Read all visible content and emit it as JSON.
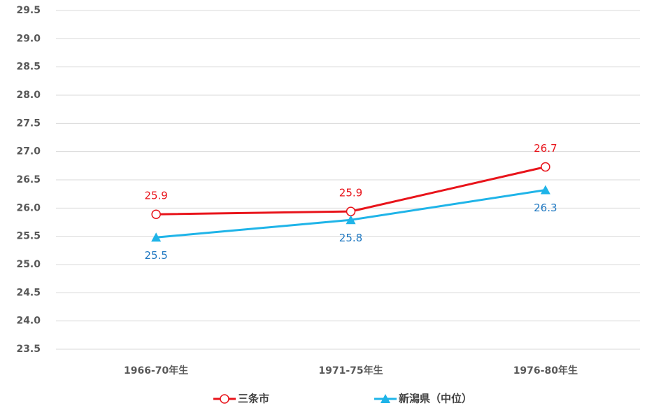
{
  "chart_data": {
    "type": "line",
    "categories": [
      "1966-70年生",
      "1971-75年生",
      "1976-80年生"
    ],
    "series": [
      {
        "name": "三条市",
        "color": "#e8141b",
        "label_color": "#e8141b",
        "marker": "circle",
        "values": [
          25.89,
          25.94,
          26.73
        ],
        "value_labels": [
          "25.9",
          "25.9",
          "26.7"
        ]
      },
      {
        "name": "新潟県（中位）",
        "color": "#1fb4e8",
        "label_color": "#1f78c1",
        "marker": "triangle",
        "values": [
          25.48,
          25.79,
          26.32
        ],
        "value_labels": [
          "25.5",
          "25.8",
          "26.3"
        ]
      }
    ],
    "ylim": [
      23.5,
      29.5
    ],
    "yticks": [
      23.5,
      {
        "value": 24,
        "label": "24.0"
      },
      24.5,
      {
        "value": 25,
        "label": "25.0"
      },
      25.5,
      {
        "value": 26,
        "label": "26.0"
      },
      26.5,
      {
        "value": 27,
        "label": "27.0"
      },
      27.5,
      {
        "value": 28,
        "label": "28.0"
      },
      28.5,
      {
        "value": 29,
        "label": "29.0"
      },
      29.5
    ],
    "grid": true,
    "legend": "bottom"
  }
}
